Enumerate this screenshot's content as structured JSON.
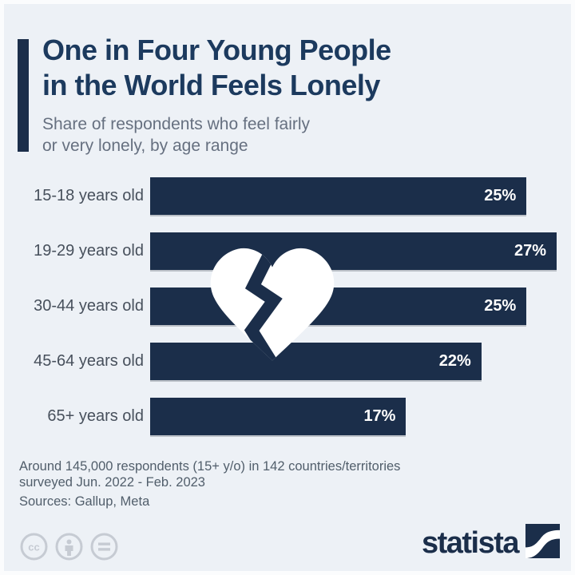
{
  "header": {
    "title_line1": "One in Four Young People",
    "title_line2": "in the World Feels Lonely",
    "subtitle_line1": "Share of respondents who feel fairly",
    "subtitle_line2": "or very lonely, by age range"
  },
  "chart_data": {
    "type": "bar",
    "orientation": "horizontal",
    "title": "One in Four Young People in the World Feels Lonely",
    "subtitle": "Share of respondents who feel fairly or very lonely, by age range",
    "categories": [
      "15-18 years old",
      "19-29 years old",
      "30-44 years old",
      "45-64 years old",
      "65+ years old"
    ],
    "values": [
      25,
      27,
      25,
      22,
      17
    ],
    "value_labels": [
      "25%",
      "27%",
      "25%",
      "22%",
      "17%"
    ],
    "xlim": [
      0,
      27
    ],
    "xlabel": "",
    "ylabel": "",
    "grid": false,
    "legend": "none",
    "bar_color": "#1b2e4a",
    "value_label_position": "inside-end",
    "annotation_icon": "broken-heart-icon"
  },
  "footnote": {
    "line1": "Around 145,000 respondents (15+ y/o) in 142 countries/territories",
    "line2": "surveyed Jun. 2022 - Feb. 2023",
    "sources": "Sources: Gallup, Meta"
  },
  "footer": {
    "license_icons": [
      "cc-icon",
      "attribution-person-icon",
      "equals-icon"
    ],
    "cc_text": "cc",
    "logo_text": "statista"
  },
  "colors": {
    "background": "#edf1f6",
    "frame": "#fbfcfd",
    "navy": "#1b2e4a",
    "title_navy": "#1c3a5e",
    "subtitle_gray": "#667080",
    "label_gray": "#47505c",
    "footnote_gray": "#515e6b",
    "license_gray": "#c6cbd3",
    "value_white": "#ffffff"
  }
}
